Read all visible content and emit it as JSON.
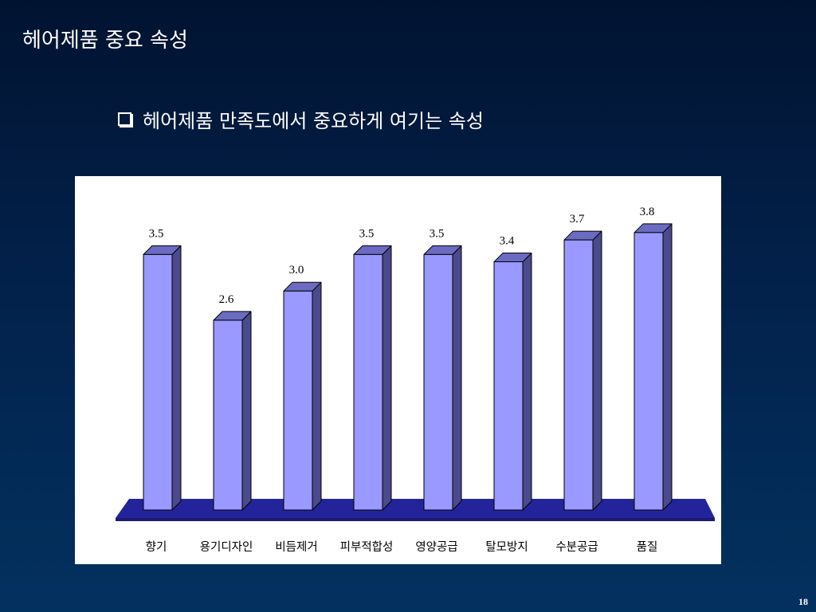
{
  "slide": {
    "title": "헤어제품 중요 속성",
    "subtitle": "헤어제품 만족도에서 중요하게 여기는 속성",
    "page_number": "18"
  },
  "colors": {
    "background_top": "#011331",
    "background_bottom": "#03315f",
    "bar_front": "#9999ff",
    "bar_side": "#4a4a8c",
    "bar_top": "#6b6bc2",
    "floor": "#24249a"
  },
  "chart_data": {
    "type": "bar",
    "style": "3d-column",
    "title": "",
    "xlabel": "",
    "ylabel": "",
    "ylim": [
      0,
      3.8
    ],
    "categories": [
      "향기",
      "용기디자인",
      "비듬제거",
      "피부적합성",
      "영양공급",
      "탈모방지",
      "수분공급",
      "품질"
    ],
    "values": [
      3.5,
      2.6,
      3.0,
      3.5,
      3.5,
      3.4,
      3.7,
      3.8
    ],
    "value_labels": [
      "3.5",
      "2.6",
      "3.0",
      "3.5",
      "3.5",
      "3.4",
      "3.7",
      "3.8"
    ],
    "grid": false,
    "legend": "none"
  }
}
